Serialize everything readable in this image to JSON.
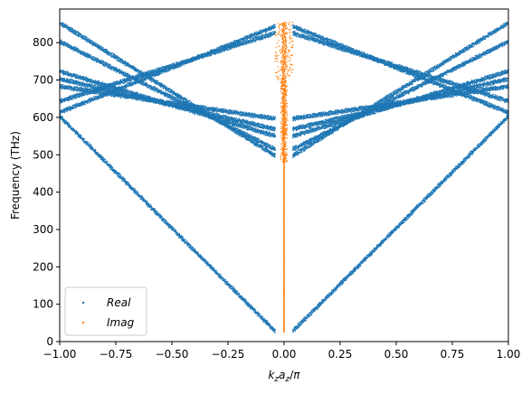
{
  "chart_data": {
    "type": "scatter",
    "xlabel": "k_z a_z/π",
    "ylabel": "Frequency (THz)",
    "xlim": [
      -1.0,
      1.0
    ],
    "ylim": [
      0,
      890
    ],
    "x_ticks": [
      "−1.00",
      "−0.75",
      "−0.50",
      "−0.25",
      "0.00",
      "0.25",
      "0.50",
      "0.75",
      "1.00"
    ],
    "y_ticks": [
      "0",
      "100",
      "200",
      "300",
      "400",
      "500",
      "600",
      "700",
      "800"
    ],
    "grid": false,
    "legend_position": "lower-left",
    "series": [
      {
        "name": "Real",
        "color": "#1f77b4",
        "marker": "dot",
        "description_free": true,
        "bands": [
          {
            "type": "linear",
            "x_start": 0.04,
            "f_start": 25,
            "x_end": 1.0,
            "f_end": 600
          },
          {
            "type": "folded",
            "f_at_zero": 480,
            "f_at_edge": 850
          },
          {
            "type": "folded",
            "f_at_zero": 500,
            "f_at_edge": 800
          },
          {
            "type": "folded",
            "f_at_zero": 540,
            "f_at_edge": 720
          },
          {
            "type": "folded",
            "f_at_zero": 560,
            "f_at_edge": 700
          },
          {
            "type": "folded",
            "f_at_zero": 590,
            "f_at_edge": 680
          },
          {
            "type": "folded_up",
            "f_at_zero": 850,
            "f_at_edge": 610
          },
          {
            "type": "folded_up",
            "f_at_zero": 830,
            "f_at_edge": 640
          }
        ]
      },
      {
        "name": "Imag",
        "color": "#ff7f0e",
        "marker": "dot",
        "x_center": 0.0,
        "f_min": 25,
        "f_max": 855
      }
    ]
  }
}
